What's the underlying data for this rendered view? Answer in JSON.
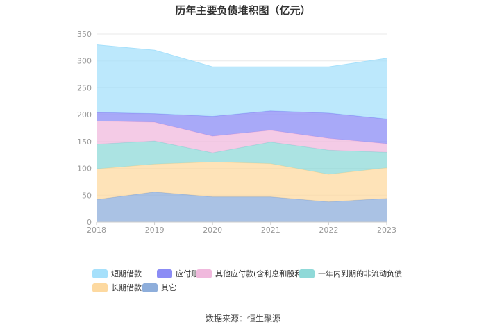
{
  "chart_data": {
    "type": "area",
    "stacked": true,
    "title": "历年主要负债堆积图（亿元）",
    "x": [
      "2018",
      "2019",
      "2020",
      "2021",
      "2022",
      "2023"
    ],
    "ylim": [
      0,
      350
    ],
    "yticks": [
      0,
      50,
      100,
      150,
      200,
      250,
      300,
      350
    ],
    "grid": true,
    "legend_position": "bottom",
    "series": [
      {
        "name": "其它",
        "color": "#8eaedb",
        "values": [
          42,
          56,
          47,
          47,
          38,
          44
        ]
      },
      {
        "name": "长期借款",
        "color": "#fdd9a0",
        "values": [
          57,
          52,
          65,
          62,
          51,
          57
        ]
      },
      {
        "name": "一年内到期的非流动负债",
        "color": "#8fd9d8",
        "values": [
          46,
          43,
          17,
          40,
          45,
          29
        ]
      },
      {
        "name": "其他应付款(含利息和股利)",
        "color": "#f0b9dd",
        "values": [
          43,
          35,
          31,
          22,
          22,
          16
        ]
      },
      {
        "name": "应付账款",
        "color": "#8b8cf5",
        "values": [
          16,
          16,
          37,
          36,
          47,
          46
        ]
      },
      {
        "name": "短期借款",
        "color": "#a6e0fb",
        "values": [
          126,
          118,
          92,
          82,
          86,
          113
        ]
      }
    ],
    "legend_order": [
      "短期借款",
      "应付账款",
      "其他应付款(含利息和股利)",
      "一年内到期的非流动负债",
      "长期借款",
      "其它"
    ]
  },
  "source_text": "数据来源：恒生聚源"
}
